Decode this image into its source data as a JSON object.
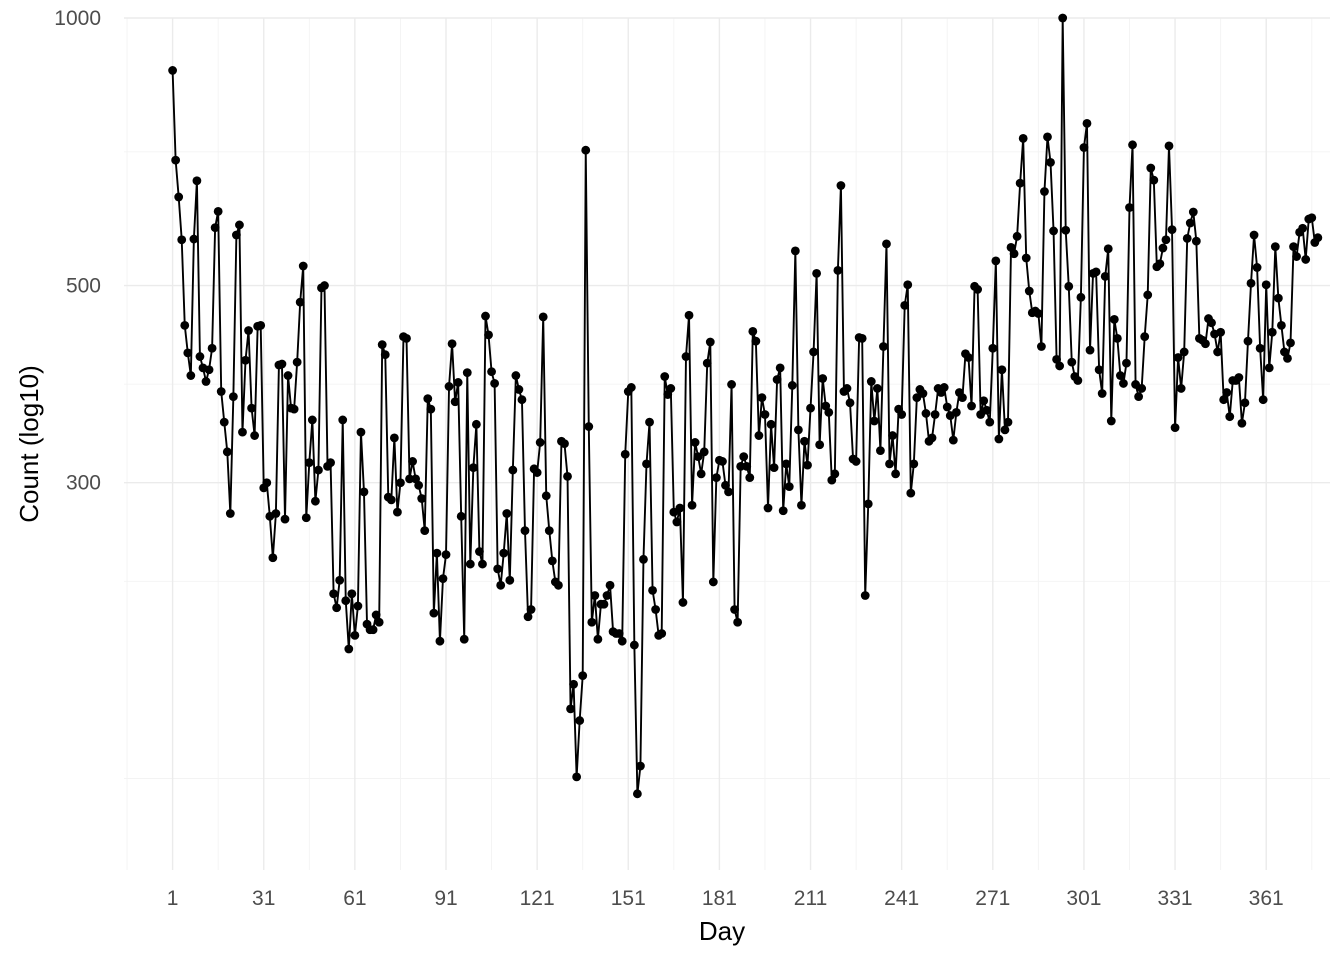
{
  "chart_data": {
    "type": "line",
    "x_label": "Day",
    "y_label": "Count (log10)",
    "y_scale": "log10",
    "grid": true,
    "legend": "none",
    "x_range": [
      -15,
      382
    ],
    "y_range": [
      110,
      1000
    ],
    "x_ticks": [
      1,
      31,
      61,
      91,
      121,
      151,
      181,
      211,
      241,
      271,
      301,
      331,
      361
    ],
    "y_ticks": [
      300,
      500,
      1000
    ],
    "series": [
      {
        "line_color": "#000000",
        "markers": true,
        "x_start": 1,
        "values": [
          873,
          692,
          629,
          563,
          451,
          420,
          396,
          564,
          656,
          416,
          404,
          390,
          402,
          425,
          581,
          606,
          380,
          351,
          325,
          277,
          375,
          570,
          585,
          342,
          412,
          445,
          364,
          339,
          450,
          451,
          296,
          300,
          275,
          247,
          277,
          407,
          408,
          273,
          396,
          364,
          363,
          410,
          479,
          526,
          274,
          316,
          353,
          286,
          310,
          497,
          500,
          313,
          316,
          225,
          217,
          233,
          353,
          221,
          195,
          225,
          202,
          218,
          342,
          293,
          208,
          205,
          205,
          213,
          209,
          429,
          418,
          289,
          287,
          337,
          278,
          300,
          438,
          436,
          303,
          317,
          303,
          298,
          288,
          265,
          373,
          363,
          214,
          250,
          199,
          234,
          249,
          385,
          430,
          370,
          389,
          275,
          200,
          399,
          243,
          312,
          349,
          251,
          243,
          462,
          440,
          400,
          388,
          240,
          230,
          250,
          277,
          233,
          310,
          396,
          382,
          372,
          265,
          212,
          216,
          311,
          308,
          333,
          461,
          290,
          265,
          245,
          232,
          230,
          334,
          332,
          305,
          167,
          178,
          140,
          162,
          182,
          710,
          347,
          209,
          224,
          200,
          219,
          219,
          224,
          230,
          204,
          203,
          203,
          199,
          323,
          380,
          384,
          197,
          134,
          144,
          246,
          315,
          351,
          227,
          216,
          202,
          203,
          395,
          377,
          383,
          278,
          271,
          281,
          220,
          416,
          463,
          283,
          333,
          321,
          307,
          325,
          409,
          432,
          232,
          304,
          318,
          317,
          298,
          293,
          387,
          216,
          209,
          313,
          321,
          313,
          304,
          444,
          433,
          339,
          374,
          358,
          281,
          349,
          312,
          392,
          404,
          279,
          315,
          297,
          386,
          547,
          344,
          283,
          334,
          314,
          364,
          421,
          516,
          331,
          393,
          366,
          360,
          302,
          307,
          520,
          648,
          380,
          383,
          369,
          319,
          317,
          437,
          436,
          224,
          284,
          390,
          352,
          383,
          326,
          427,
          557,
          315,
          339,
          307,
          363,
          358,
          475,
          501,
          292,
          315,
          374,
          382,
          378,
          359,
          334,
          337,
          358,
          383,
          379,
          384,
          365,
          357,
          335,
          360,
          379,
          374,
          419,
          415,
          366,
          499,
          495,
          358,
          371,
          362,
          351,
          425,
          533,
          336,
          402,
          344,
          351,
          552,
          543,
          568,
          652,
          732,
          537,
          493,
          466,
          468,
          465,
          427,
          638,
          735,
          688,
          576,
          413,
          406,
          1000,
          577,
          499,
          410,
          395,
          391,
          485,
          715,
          761,
          423,
          516,
          518,
          402,
          378,
          512,
          550,
          352,
          458,
          436,
          396,
          388,
          409,
          612,
          720,
          387,
          375,
          383,
          438,
          488,
          678,
          657,
          525,
          529,
          551,
          563,
          718,
          578,
          346,
          415,
          383,
          421,
          565,
          588,
          605,
          561,
          436,
          434,
          430,
          459,
          454,
          441,
          421,
          443,
          372,
          379,
          356,
          391,
          391,
          394,
          350,
          369,
          433,
          503,
          570,
          524,
          425,
          372,
          501,
          404,
          443,
          553,
          484,
          451,
          421,
          414,
          431,
          553,
          539,
          574,
          580,
          535,
          594,
          596,
          559,
          566
        ]
      }
    ]
  }
}
